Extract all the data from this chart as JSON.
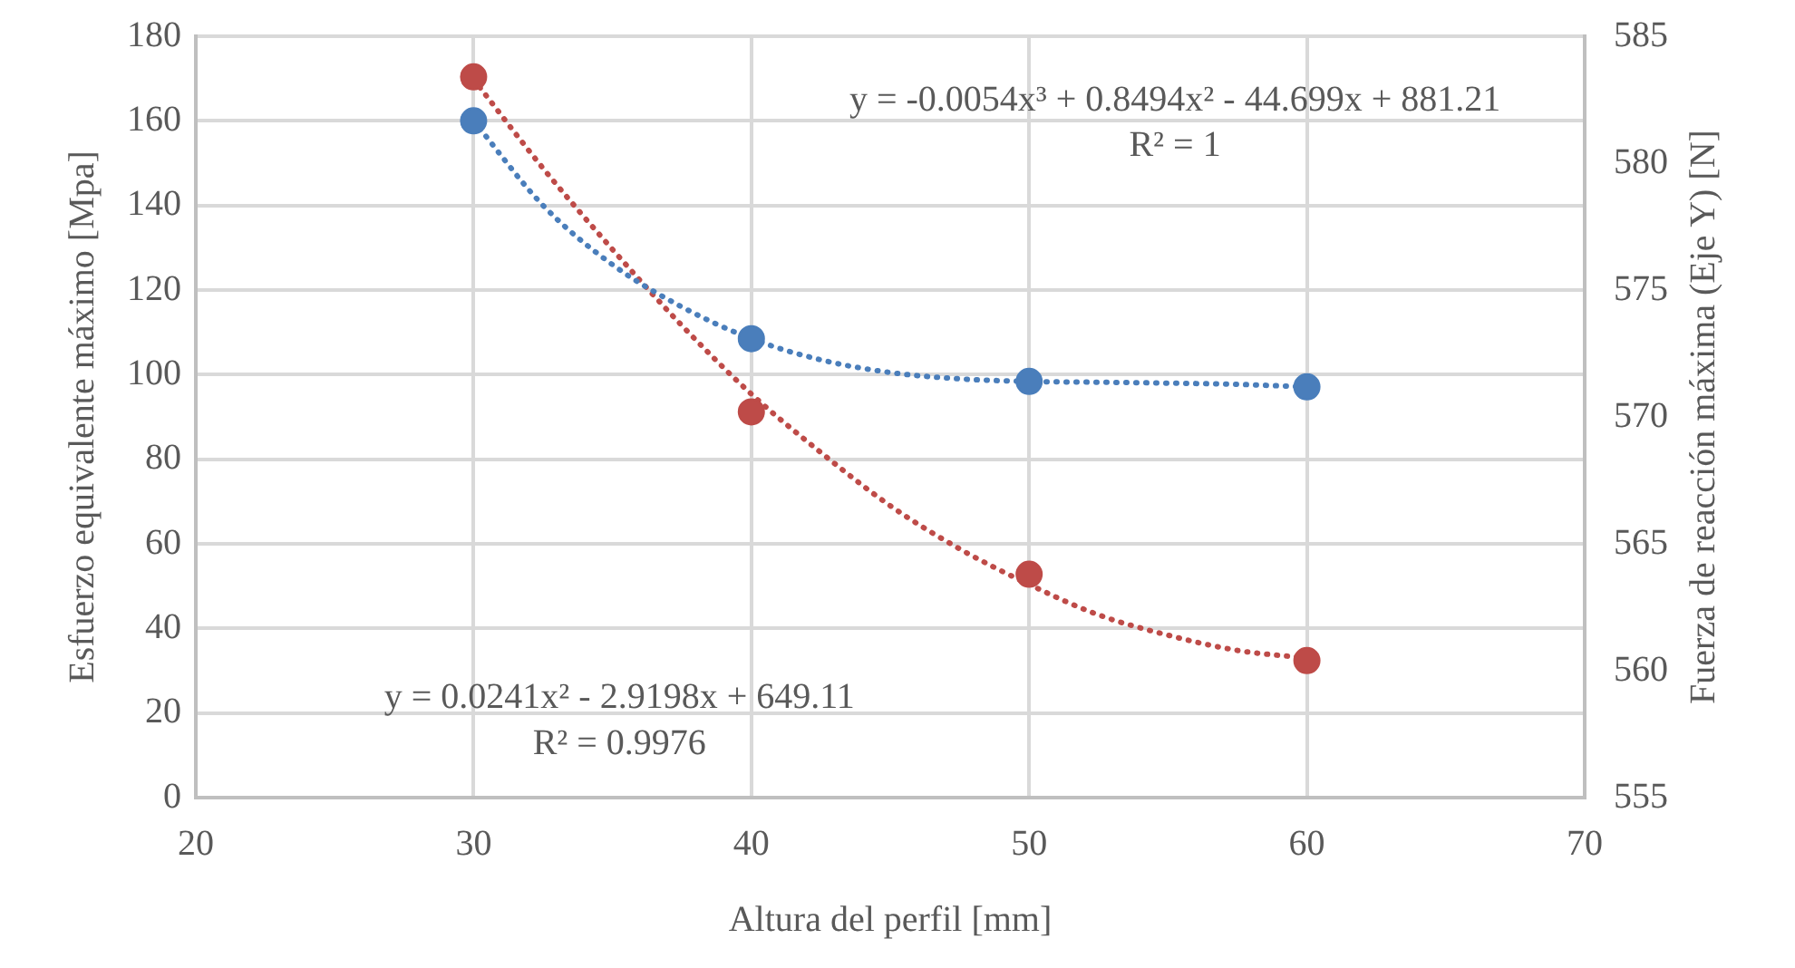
{
  "chart_data": {
    "type": "scatter",
    "xlabel": "Altura del perfil [mm]",
    "ylabel": "Esfuerzo equivalente máximo [Mpa]",
    "y2label": "Fuerza de reacción máxima (Eje Y) [N]",
    "xlim": [
      20,
      70
    ],
    "xticks": [
      20,
      30,
      40,
      50,
      60,
      70
    ],
    "ylim": [
      0,
      180
    ],
    "yticks": [
      0,
      20,
      40,
      60,
      80,
      100,
      120,
      140,
      160,
      180
    ],
    "y2lim": [
      555,
      585
    ],
    "y2ticks": [
      555,
      560,
      565,
      570,
      575,
      580,
      585
    ],
    "grid": true,
    "legend": false,
    "marker": "circle",
    "series": [
      {
        "color": "#4a7ebb",
        "x": [
          30,
          40,
          50,
          60
        ],
        "values": [
          160,
          108.5,
          98.4,
          97.1
        ]
      },
      {
        "color": "#be4b48",
        "axis": "y2",
        "x": [
          30,
          40,
          50,
          60
        ],
        "values": [
          583.4,
          570.2,
          563.8,
          560.4
        ]
      },
      {
        "type": "line",
        "color": "#4a7ebb",
        "line_style": "dotted",
        "marker": "none",
        "x": [
          30,
          32.5,
          35,
          37.5,
          40,
          42.5,
          45,
          47.5,
          50,
          52.5,
          55,
          57.5,
          60
        ],
        "values": [
          160,
          140,
          126,
          116,
          108.5,
          103.5,
          100.5,
          99,
          98.4,
          98.2,
          98,
          97.7,
          97.1
        ]
      },
      {
        "type": "line",
        "color": "#be4b48",
        "line_style": "dotted",
        "marker": "none",
        "axis": "y2",
        "x": [
          30,
          32.5,
          35,
          37.5,
          40,
          42.5,
          45,
          47.5,
          50,
          52.5,
          55,
          57.5,
          60
        ],
        "values": [
          583.3,
          579.8,
          576.6,
          573.6,
          570.9,
          568.6,
          566.5,
          564.8,
          563.4,
          562.2,
          561.4,
          560.8,
          560.5
        ]
      }
    ],
    "annotations": [
      "y = -0.0054x³ + 0.8494x² - 44.699x + 881.21",
      "R² = 1",
      "y = 0.0241x² - 2.9198x + 649.11",
      "R² = 0.9976"
    ]
  }
}
